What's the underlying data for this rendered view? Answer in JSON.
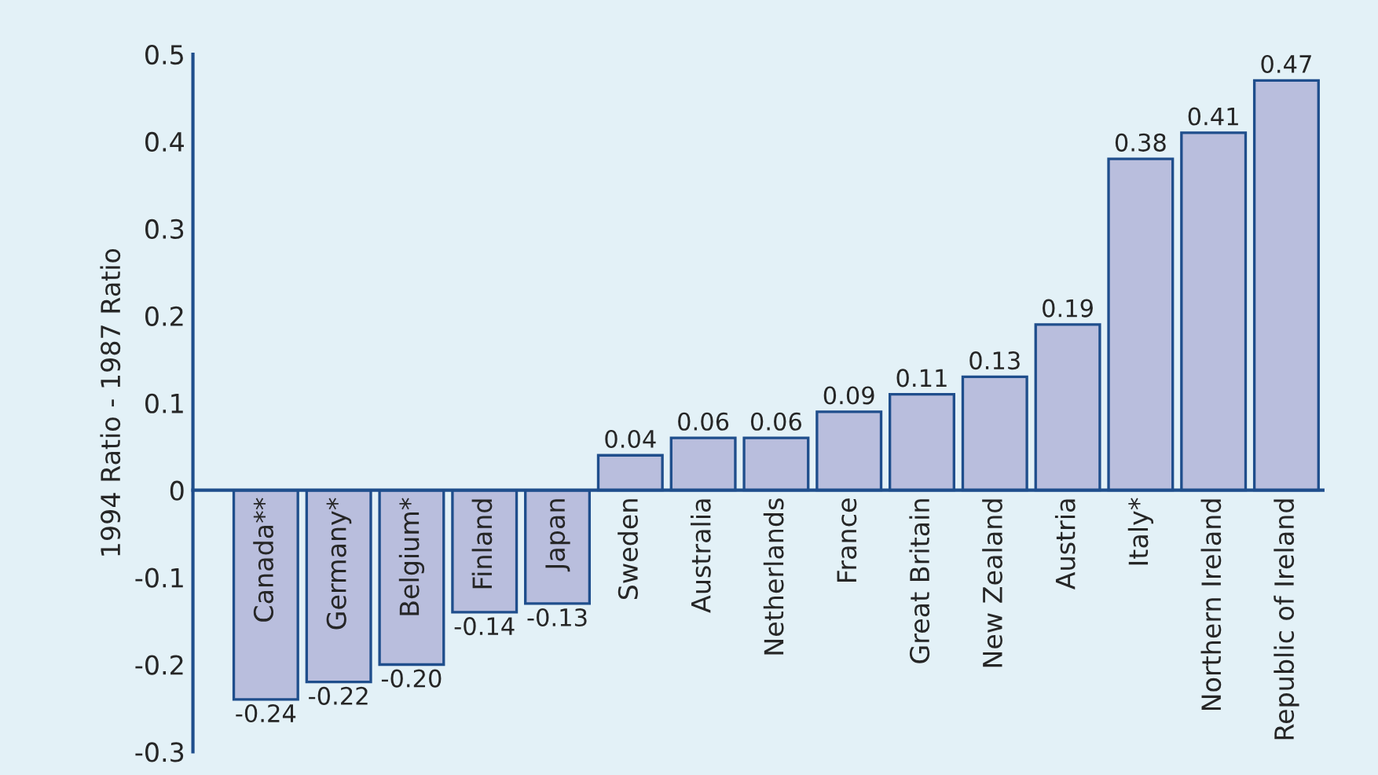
{
  "chart_data": {
    "type": "bar",
    "ylabel": "1994 Ratio - 1987 Ratio",
    "categories": [
      "Canada**",
      "Germany*",
      "Belgium*",
      "Finland",
      "Japan",
      "Sweden",
      "Australia",
      "Netherlands",
      "France",
      "Great Britain",
      "New Zealand",
      "Austria",
      "Italy*",
      "Northern Ireland",
      "Republic of Ireland"
    ],
    "values": [
      -0.24,
      -0.22,
      -0.2,
      -0.14,
      -0.13,
      0.04,
      0.06,
      0.06,
      0.09,
      0.11,
      0.13,
      0.19,
      0.38,
      0.41,
      0.47
    ],
    "value_labels": [
      "-0.24",
      "-0.22",
      "-0.20",
      "-0.14",
      "-0.13",
      "0.04",
      "0.06",
      "0.06",
      "0.09",
      "0.11",
      "0.13",
      "0.19",
      "0.38",
      "0.41",
      "0.47"
    ],
    "color": "#b9bedd",
    "ylim": [
      -0.3,
      0.5
    ],
    "yticks": [
      0.5,
      0.4,
      0.3,
      0.2,
      0.1,
      0,
      -0.1,
      -0.2,
      -0.3
    ],
    "grid": false
  }
}
